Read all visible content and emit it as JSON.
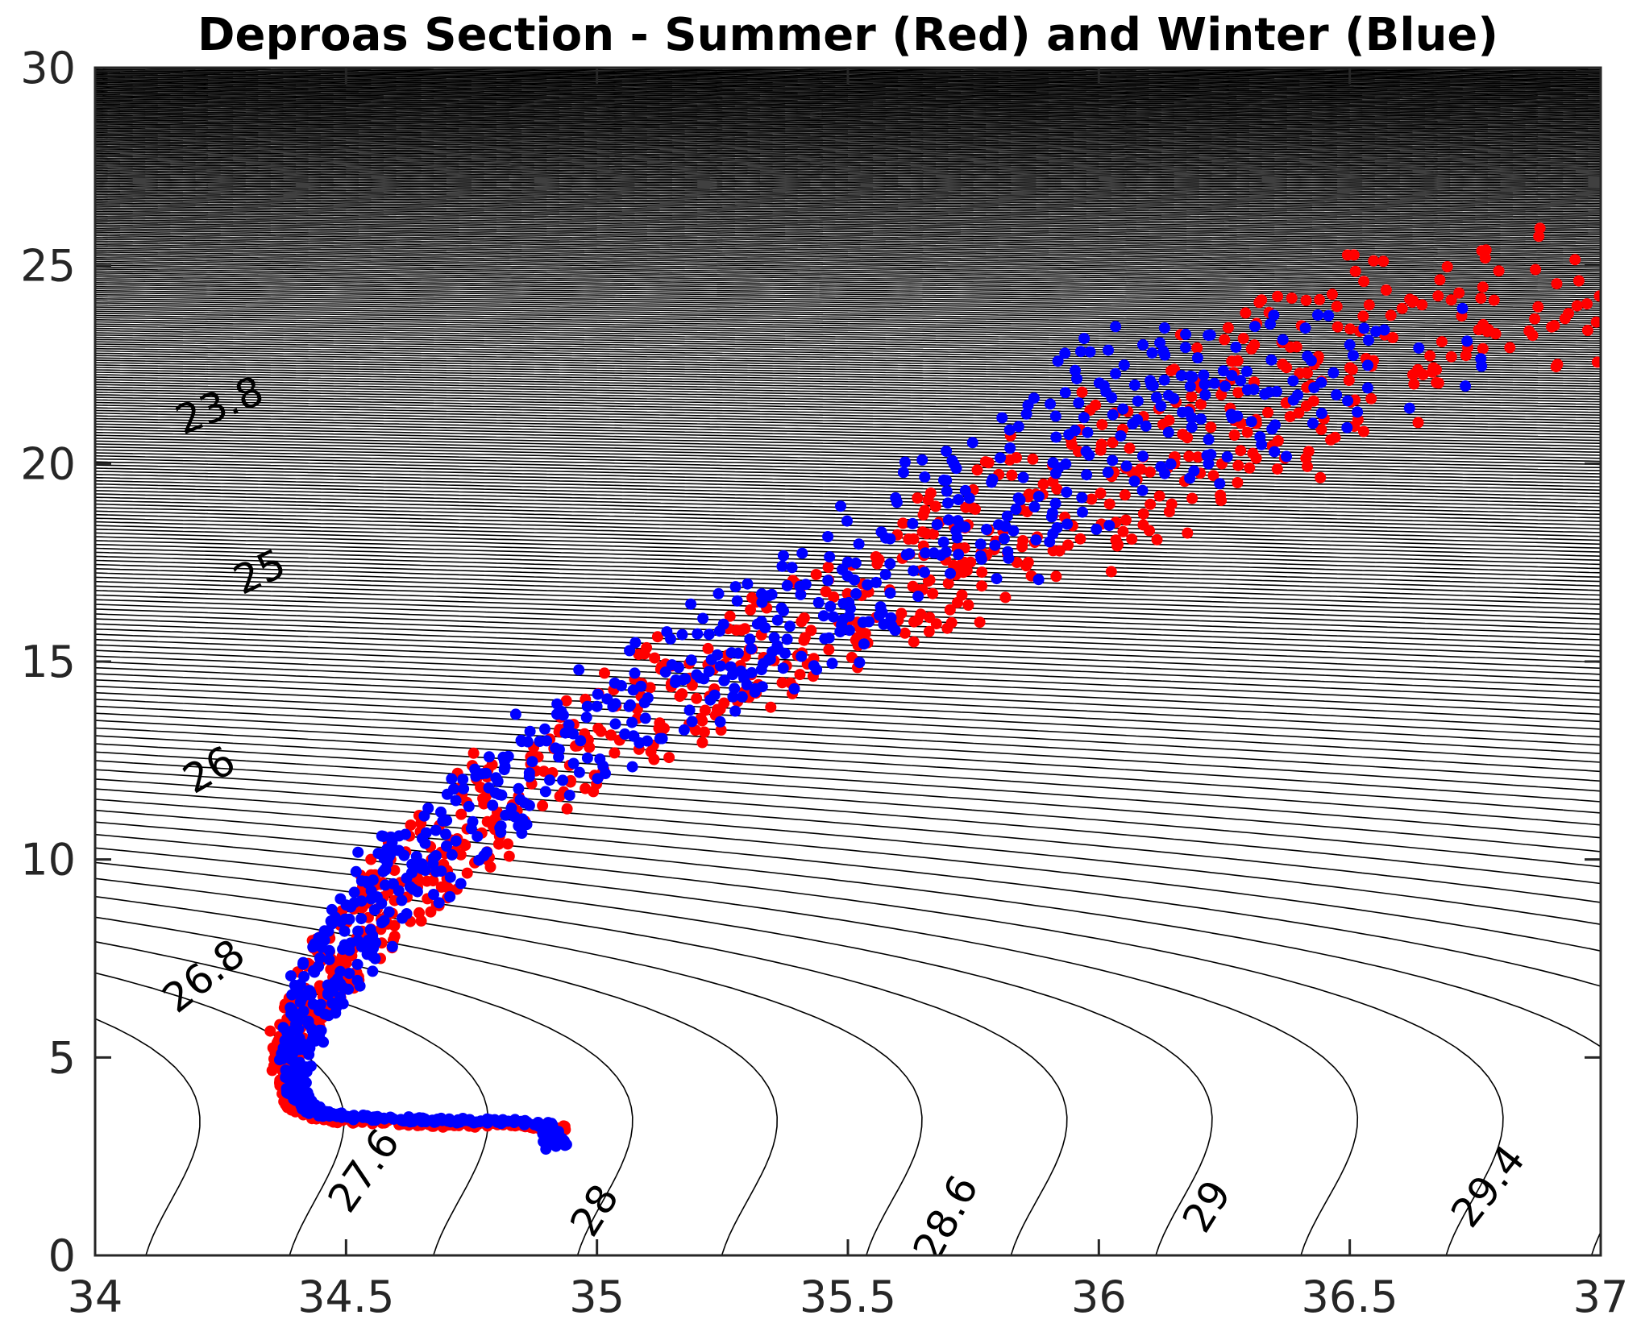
{
  "chart_data": {
    "type": "scatter",
    "title": "Deproas Section - Summer (Red) and Winter (Blue)",
    "xlabel": "",
    "ylabel": "",
    "xlim": [
      34,
      37
    ],
    "ylim": [
      0,
      30
    ],
    "xticks": [
      34,
      34.5,
      35,
      35.5,
      36,
      36.5,
      37
    ],
    "xtick_labels": [
      "34",
      "34.5",
      "35",
      "35.5",
      "36",
      "36.5",
      "37"
    ],
    "yticks": [
      0,
      5,
      10,
      15,
      20,
      25,
      30
    ],
    "ytick_labels": [
      "0",
      "5",
      "10",
      "15",
      "20",
      "25",
      "30"
    ],
    "grid": false,
    "legend": "none",
    "background_contours": {
      "description_quantity": "density isolines",
      "interval": 0.2,
      "color": "#000000",
      "labels": [
        "23.8",
        "25",
        "26",
        "26.8",
        "27.6",
        "28",
        "28.6",
        "29",
        "29.4"
      ]
    },
    "series": [
      {
        "color": "#ff0000",
        "x": [
          34.93,
          34.9,
          34.8,
          34.7,
          34.6,
          34.5,
          34.45,
          34.41,
          34.39,
          34.38,
          34.38,
          34.39,
          34.42,
          34.45,
          34.5,
          34.55,
          34.6,
          34.65,
          34.7,
          34.8,
          34.9,
          35.0,
          35.1,
          35.2,
          35.3,
          35.4,
          35.5,
          35.6,
          35.7,
          35.8,
          35.9,
          36.0,
          36.1,
          36.2,
          36.3,
          36.4,
          36.5,
          36.6,
          36.7,
          36.8,
          36.87
        ],
        "y": [
          3.2,
          3.25,
          3.3,
          3.3,
          3.35,
          3.4,
          3.5,
          3.7,
          4.0,
          4.5,
          5.0,
          5.6,
          6.2,
          6.8,
          7.6,
          8.3,
          9.0,
          9.7,
          10.3,
          11.3,
          12.2,
          13.0,
          13.7,
          14.4,
          15.0,
          15.6,
          16.3,
          17.0,
          17.6,
          18.2,
          18.8,
          19.4,
          20.0,
          20.6,
          21.2,
          21.8,
          22.5,
          23.2,
          23.8,
          24.4,
          24.9
        ]
      },
      {
        "color": "#0000ff",
        "x": [
          34.92,
          34.9,
          34.8,
          34.7,
          34.6,
          34.5,
          34.45,
          34.42,
          34.4,
          34.4,
          34.41,
          34.43,
          34.46,
          34.5,
          34.55,
          34.6,
          34.65,
          34.7,
          34.8,
          34.9,
          35.0,
          35.1,
          35.2,
          35.3,
          35.4,
          35.5,
          35.6,
          35.7,
          35.8,
          35.9,
          36.0,
          36.1,
          36.2,
          36.3,
          36.4,
          36.5
        ],
        "y": [
          2.7,
          3.3,
          3.4,
          3.4,
          3.45,
          3.5,
          3.6,
          3.8,
          4.2,
          4.8,
          5.5,
          6.2,
          6.9,
          7.7,
          8.5,
          9.3,
          10.0,
          10.6,
          11.6,
          12.5,
          13.3,
          14.0,
          14.7,
          15.3,
          16.0,
          16.7,
          17.4,
          18.2,
          19.0,
          19.8,
          20.6,
          21.3,
          21.8,
          22.3,
          22.7,
          23.0
        ]
      }
    ]
  }
}
